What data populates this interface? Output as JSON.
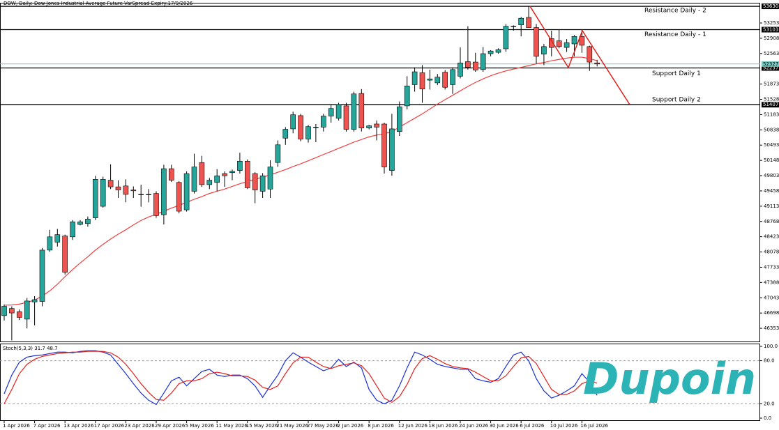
{
  "chart_data": {
    "type": "candlestick",
    "title": "DOW, Daily:  Dow Jones Industrial Average Future-VarSpread-Expiry:17/9/2026",
    "categories": [
      "1 Apr 2026",
      null,
      null,
      null,
      "7 Apr 2026",
      null,
      null,
      null,
      "13 Apr 2026",
      null,
      null,
      null,
      "17 Apr 2026",
      null,
      null,
      null,
      "23 Apr 2026",
      null,
      null,
      null,
      "29 Apr 2026",
      null,
      null,
      null,
      "5 May 2026",
      null,
      null,
      null,
      "11 May 2026",
      null,
      null,
      null,
      "15 May 2026",
      null,
      null,
      null,
      "21 May 2026",
      null,
      null,
      null,
      "27 May 2026",
      null,
      null,
      null,
      "2 Jun 2026",
      null,
      null,
      null,
      "8 Jun 2026",
      null,
      null,
      null,
      "12 Jun 2026",
      null,
      null,
      null,
      "18 Jun 2026",
      null,
      null,
      null,
      "24 Jun 2026",
      null,
      null,
      null,
      "30 Jun 2026",
      null,
      null,
      null,
      "6 Jul 2026",
      null,
      null,
      null,
      "10 Jul 2026",
      null,
      null,
      null,
      "16 Jul 2026",
      null,
      null
    ],
    "open": [
      46640,
      46800,
      46730,
      46560,
      46950,
      46960,
      48120,
      48300,
      48440,
      48420,
      48700,
      48720,
      48850,
      49110,
      49700,
      49550,
      49570,
      49480,
      49380,
      49370,
      49400,
      48920,
      49960,
      49650,
      49030,
      49450,
      50100,
      49600,
      49650,
      49850,
      49870,
      49920,
      50130,
      49850,
      49450,
      49500,
      50100,
      50650,
      50860,
      51160,
      50630,
      50900,
      50900,
      51150,
      51100,
      51380,
      50850,
      51660,
      50880,
      50970,
      50970,
      49920,
      50800,
      51380,
      51860,
      52130,
      51960,
      51900,
      52140,
      51860,
      52050,
      52380,
      52370,
      52200,
      52560,
      52590,
      52670,
      53170,
      53210,
      53380,
      53150,
      52550,
      52900,
      52850,
      52700,
      52780,
      52950,
      52720,
      52350
    ],
    "high": [
      46890,
      46850,
      46780,
      47040,
      47080,
      48170,
      48580,
      48600,
      48470,
      48800,
      48800,
      48880,
      49800,
      49780,
      50060,
      49700,
      49720,
      49560,
      49600,
      49500,
      49450,
      50050,
      50050,
      49680,
      49900,
      50300,
      50250,
      49750,
      49950,
      49900,
      49940,
      50320,
      50170,
      49880,
      49860,
      50150,
      50600,
      50900,
      51250,
      51200,
      50950,
      50970,
      51200,
      51400,
      51450,
      51450,
      51700,
      51760,
      50950,
      51050,
      51000,
      51200,
      51480,
      52050,
      52250,
      52300,
      52200,
      52100,
      52190,
      52250,
      52700,
      53180,
      52580,
      52710,
      52640,
      52680,
      53230,
      53200,
      53390,
      53630,
      53230,
      52780,
      53080,
      53100,
      52890,
      52980,
      53100,
      52740,
      52420
    ],
    "low": [
      46530,
      46080,
      46540,
      46350,
      46420,
      46850,
      48080,
      48200,
      47570,
      48350,
      48680,
      48650,
      48800,
      49080,
      49500,
      49300,
      49200,
      49300,
      49100,
      49200,
      48850,
      48700,
      49660,
      48950,
      48990,
      49400,
      49550,
      49500,
      49450,
      49550,
      49700,
      49850,
      49500,
      49180,
      49300,
      49300,
      50000,
      50500,
      50760,
      50580,
      50550,
      50560,
      50800,
      51000,
      51050,
      50800,
      50800,
      50800,
      50850,
      50600,
      49850,
      49800,
      50700,
      51300,
      51700,
      51450,
      51750,
      51850,
      51750,
      51650,
      52000,
      52200,
      52150,
      52150,
      52500,
      52560,
      52600,
      53080,
      52950,
      53200,
      52330,
      52300,
      52500,
      52680,
      52600,
      52500,
      52580,
      52170,
      52270
    ],
    "close": [
      46850,
      46700,
      46600,
      46970,
      47000,
      48120,
      48420,
      48470,
      47620,
      48760,
      48760,
      48820,
      49720,
      49720,
      49550,
      49480,
      49380,
      49460,
      49370,
      49380,
      48900,
      49960,
      49700,
      49000,
      49850,
      50000,
      49600,
      49700,
      49800,
      49800,
      49900,
      50130,
      49530,
      49480,
      49800,
      50000,
      50500,
      50850,
      51180,
      50630,
      50910,
      50900,
      51150,
      51320,
      51410,
      50850,
      51650,
      50880,
      50930,
      50900,
      50000,
      50860,
      51360,
      51830,
      52150,
      51760,
      51990,
      52030,
      51800,
      52200,
      52350,
      52250,
      52190,
      52560,
      52620,
      52650,
      53180,
      53180,
      53360,
      53150,
      52500,
      52720,
      52700,
      52720,
      52810,
      52950,
      52750,
      52370,
      52327
    ],
    "up_color": "#26a69a",
    "down_color": "#ef5350",
    "ma": {
      "color": "#ef4040",
      "values": [
        46875,
        46880,
        46900,
        46940,
        46990,
        47080,
        47200,
        47350,
        47520,
        47680,
        47830,
        47970,
        48120,
        48250,
        48370,
        48480,
        48580,
        48690,
        48790,
        48870,
        48930,
        49000,
        49070,
        49130,
        49200,
        49270,
        49330,
        49400,
        49450,
        49500,
        49560,
        49620,
        49670,
        49720,
        49770,
        49820,
        49880,
        49940,
        50010,
        50070,
        50140,
        50210,
        50280,
        50350,
        50420,
        50490,
        50560,
        50620,
        50680,
        50720,
        50750,
        50800,
        50900,
        51000,
        51100,
        51200,
        51310,
        51420,
        51520,
        51620,
        51720,
        51820,
        51910,
        51990,
        52060,
        52120,
        52170,
        52210,
        52250,
        52290,
        52330,
        52360,
        52400,
        52430,
        52460,
        52480,
        52480,
        52450,
        52400
      ]
    },
    "ylim": [
      46055,
      53694
    ],
    "yticks": [
      53253,
      52908,
      52563,
      51873,
      51528,
      51183,
      50838,
      50493,
      50148,
      49803,
      49458,
      49113,
      48768,
      48423,
      48078,
      47733,
      47388,
      47043,
      46698,
      46353
    ],
    "levels": [
      {
        "name": "Resistance Daily - 2",
        "value": 53630
      },
      {
        "name": "Resistance Daily - 1",
        "value": 53103
      },
      {
        "name": "Support Daily 1",
        "value": 52237
      },
      {
        "name": "Support Daily 2",
        "value": 51407
      }
    ],
    "current_price": 52327,
    "current_color": "#7cc8c0",
    "indicator": {
      "type": "line",
      "title": "Stoch(5,3,3) 31.7 48.7",
      "series": [
        {
          "color": "#1a2fd6",
          "values": [
            34,
            60,
            78,
            85,
            87,
            88,
            90,
            92,
            92,
            91,
            93,
            94,
            94,
            92,
            88,
            75,
            62,
            48,
            35,
            25,
            19,
            35,
            52,
            57,
            45,
            55,
            65,
            68,
            60,
            58,
            60,
            60,
            55,
            45,
            29,
            45,
            60,
            80,
            91,
            85,
            78,
            72,
            66,
            70,
            82,
            72,
            78,
            70,
            40,
            25,
            20,
            25,
            45,
            70,
            92,
            88,
            82,
            75,
            72,
            70,
            68,
            68,
            55,
            52,
            50,
            55,
            72,
            88,
            92,
            80,
            55,
            38,
            28,
            32,
            38,
            45,
            62,
            50,
            31.7
          ]
        },
        {
          "color": "#e5201b",
          "values": [
            20,
            40,
            62,
            75,
            82,
            86,
            88,
            90,
            91,
            92,
            92,
            93,
            93,
            93,
            91,
            85,
            75,
            62,
            48,
            36,
            26,
            25,
            35,
            48,
            52,
            52,
            55,
            62,
            64,
            62,
            59,
            59,
            58,
            53,
            43,
            40,
            45,
            62,
            77,
            85,
            85,
            78,
            72,
            69,
            73,
            75,
            77,
            73,
            62,
            45,
            28,
            22,
            30,
            47,
            69,
            83,
            87,
            82,
            76,
            72,
            70,
            69,
            64,
            58,
            52,
            52,
            59,
            72,
            84,
            86,
            76,
            58,
            40,
            33,
            33,
            38,
            48,
            52,
            48.7
          ]
        }
      ],
      "ylim": [
        0,
        100
      ],
      "yticks": [
        {
          "value": 100,
          "label": "100.0"
        },
        {
          "value": 80,
          "label": "80.0"
        },
        {
          "value": 20,
          "label": "20.0"
        },
        {
          "value": 0,
          "label": "0.0"
        }
      ]
    },
    "watermark": "Dupoin"
  }
}
